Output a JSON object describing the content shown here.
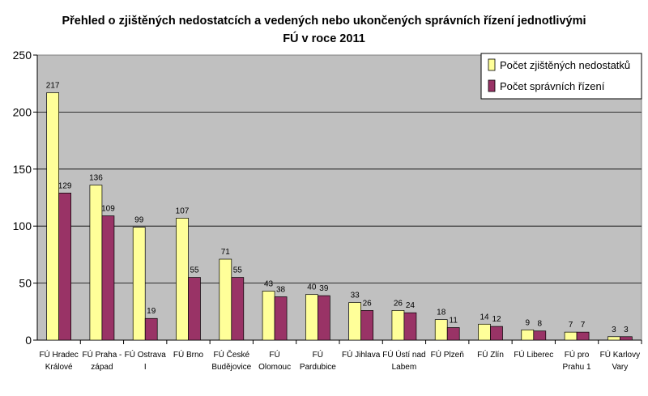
{
  "chart_data": {
    "type": "bar",
    "title": "Přehled o zjištěných nedostatcích a vedených nebo ukončených správních řízení jednotlivými FÚ v roce 2011",
    "title_lines": [
      "Přehled o zjištěných nedostatcích a vedených nebo ukončených správních řízení jednotlivými",
      "FÚ v roce 2011"
    ],
    "categories": [
      [
        "FÚ Hradec",
        "Králové"
      ],
      [
        "FÚ Praha -",
        "západ"
      ],
      [
        "FÚ Ostrava",
        "I"
      ],
      [
        "FÚ Brno"
      ],
      [
        "FÚ České",
        "Budějovice"
      ],
      [
        "FÚ",
        "Olomouc"
      ],
      [
        "FÚ",
        "Pardubice"
      ],
      [
        "FÚ Jihlava"
      ],
      [
        "FÚ Ústí nad",
        "Labem"
      ],
      [
        "FÚ Plzeň"
      ],
      [
        "FÚ Zlín"
      ],
      [
        "FÚ Liberec"
      ],
      [
        "FÚ pro",
        "Prahu 1"
      ],
      [
        "FÚ Karlovy",
        "Vary"
      ]
    ],
    "series": [
      {
        "name": "Počet zjištěných nedostatků",
        "color": "#FFFF99",
        "values": [
          217,
          136,
          99,
          107,
          71,
          43,
          40,
          33,
          26,
          18,
          14,
          9,
          7,
          3
        ]
      },
      {
        "name": "Počet správních řízení",
        "color": "#993366",
        "values": [
          129,
          109,
          19,
          55,
          55,
          38,
          39,
          26,
          24,
          11,
          12,
          8,
          7,
          3
        ]
      }
    ],
    "ylim": [
      0,
      250
    ],
    "yticks": [
      0,
      50,
      100,
      150,
      200,
      250
    ],
    "grid": true,
    "legend": "top-right",
    "plot_background": "#C0C0C0"
  }
}
